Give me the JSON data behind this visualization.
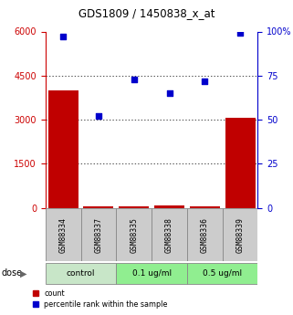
{
  "title": "GDS1809 / 1450838_x_at",
  "samples": [
    "GSM88334",
    "GSM88337",
    "GSM88335",
    "GSM88338",
    "GSM88336",
    "GSM88339"
  ],
  "bar_values": [
    4000,
    50,
    50,
    70,
    50,
    3050
  ],
  "scatter_values": [
    97,
    52,
    73,
    65,
    72,
    99
  ],
  "left_ylim": [
    0,
    6000
  ],
  "right_ylim": [
    0,
    100
  ],
  "left_yticks": [
    0,
    1500,
    3000,
    4500,
    6000
  ],
  "right_yticks": [
    0,
    25,
    50,
    75,
    100
  ],
  "right_yticklabels": [
    "0",
    "25",
    "50",
    "75",
    "100%"
  ],
  "bar_color": "#c00000",
  "scatter_color": "#0000cc",
  "left_tick_color": "#cc0000",
  "right_tick_color": "#0000cc",
  "sample_bg_color": "#cccccc",
  "control_bg": "#c8e6c8",
  "dose01_bg": "#90ee90",
  "dose05_bg": "#90ee90",
  "group_ranges": [
    [
      -0.5,
      1.5,
      "#c8e6c8",
      "control"
    ],
    [
      1.5,
      3.5,
      "#90ee90",
      "0.1 ug/ml"
    ],
    [
      3.5,
      5.5,
      "#90ee90",
      "0.5 ug/ml"
    ]
  ],
  "legend_count": "count",
  "legend_pct": "percentile rank within the sample",
  "grid_levels": [
    1500,
    3000,
    4500
  ]
}
